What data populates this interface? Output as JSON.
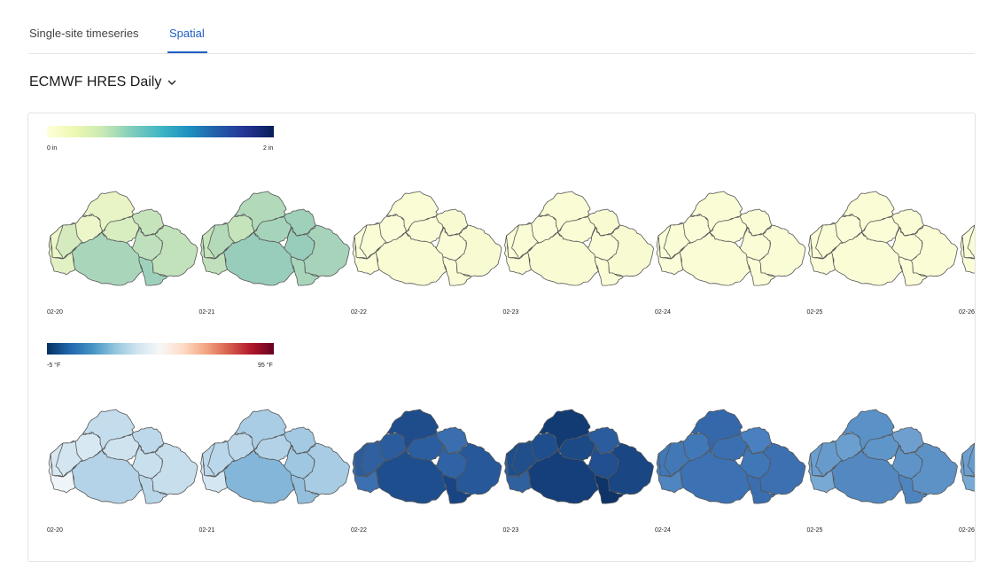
{
  "tabs": [
    {
      "label": "Single-site timeseries",
      "active": false
    },
    {
      "label": "Spatial",
      "active": true
    }
  ],
  "model_select": {
    "label": "ECMWF HRES Daily",
    "icon": "chevron-down-icon"
  },
  "precip": {
    "legend": {
      "min_label": "0 in",
      "max_label": "2 in",
      "colors": [
        "#ffffd9",
        "#edf8b1",
        "#c7e9b4",
        "#7fcdbb",
        "#41b6c4",
        "#1d91c0",
        "#225ea8",
        "#253494",
        "#081d58"
      ]
    },
    "dates": [
      "02-20",
      "02-21",
      "02-22",
      "02-23",
      "02-24",
      "02-25",
      "02-26"
    ],
    "panel_colors": [
      [
        "#edf6c9",
        "#e8f4c5",
        "#d8edc0",
        "#c6e4bc",
        "#bfe0bc",
        "#a9d6ba",
        "#e2f1c3",
        "#d5ebbf",
        "#c2e2bb",
        "#9ed1bb"
      ],
      [
        "#c5e4bb",
        "#b1d9ba",
        "#a6d4ba",
        "#9fd0ba",
        "#99cdbb",
        "#98ccbb",
        "#bfe0bb",
        "#b4dab9",
        "#a7d3ba",
        "#a9d5bb"
      ],
      [
        "#fbfdd8",
        "#f9fcd4",
        "#fafcd5",
        "#f8fbd2",
        "#fafcd6",
        "#f9fbd3",
        "#fbfdd7",
        "#f9fcd4",
        "#f8fbd2",
        "#fafcd5"
      ],
      [
        "#fbfdd8",
        "#f9fcd4",
        "#fafcd5",
        "#f8fbd2",
        "#fafcd6",
        "#f9fbd3",
        "#fbfdd7",
        "#f9fcd4",
        "#f8fbd2",
        "#fafcd5"
      ],
      [
        "#fbfdd8",
        "#fafcd5",
        "#fbfdd7",
        "#f9fcd4",
        "#fafcd6",
        "#fafcd5",
        "#fbfdd8",
        "#f9fcd4",
        "#fafcd5",
        "#fbfdd6"
      ],
      [
        "#fbfdd8",
        "#fafcd5",
        "#fbfdd7",
        "#f9fcd4",
        "#fafcd6",
        "#fafcd5",
        "#fbfdd8",
        "#f9fcd4",
        "#fafcd5",
        "#fbfdd6"
      ],
      [
        "#fbfdd8",
        "#fafcd5",
        "#fbfdd7",
        "#f9fcd4",
        "#fafcd6",
        "#fafcd5",
        "#fbfdd8",
        "#f9fcd4",
        "#fafcd5",
        "#fbfdd6"
      ]
    ]
  },
  "temp": {
    "legend": {
      "min_label": "-5 °F",
      "max_label": "95 °F",
      "colors": [
        "#053061",
        "#2166ac",
        "#4393c3",
        "#92c5de",
        "#d1e5f0",
        "#f7f7f7",
        "#fddbc7",
        "#f4a582",
        "#d6604d",
        "#b2182b",
        "#67001f"
      ]
    },
    "dates": [
      "02-20",
      "02-21",
      "02-22",
      "02-23",
      "02-24",
      "02-25",
      "02-26"
    ],
    "panel_colors": [
      [
        "#d8e8f2",
        "#c4ddec",
        "#cfe3ef",
        "#bdd8ea",
        "#c8dfed",
        "#b5d3e8",
        "#eef4f8",
        "#d2e5f0",
        "#c7deed",
        "#b9d6e9"
      ],
      [
        "#bcd7ea",
        "#a9cde4",
        "#b3d2e7",
        "#a4cae3",
        "#9ec7e2",
        "#84b6d9",
        "#d4e6f1",
        "#bad6ea",
        "#a7cce4",
        "#93bfdd"
      ],
      [
        "#2b5d9e",
        "#1f4d8c",
        "#2a5ea0",
        "#3a6eae",
        "#2f63a5",
        "#1e4e8d",
        "#3c70b0",
        "#30609f",
        "#26589a",
        "#1a4585"
      ],
      [
        "#1e4e8d",
        "#123b74",
        "#1c4a87",
        "#2b5d9e",
        "#214f8f",
        "#153f7a",
        "#30619f",
        "#214f8c",
        "#1a4684",
        "#0f3468"
      ],
      [
        "#4178b8",
        "#3568ab",
        "#3a70b2",
        "#4a80bf",
        "#3f77b7",
        "#3c72b3",
        "#4f85c1",
        "#4378b6",
        "#3c70b1",
        "#3a6eae"
      ],
      [
        "#6b9fcf",
        "#5a91c6",
        "#5f96c9",
        "#6e9fcf",
        "#5f94c8",
        "#5388c1",
        "#78a9d4",
        "#679bcc",
        "#5d92c7",
        "#4f85be"
      ],
      [
        "#6b9fcf",
        "#5a91c6",
        "#5f96c9",
        "#6e9fcf",
        "#5f94c8",
        "#5388c1",
        "#78a9d4",
        "#679bcc",
        "#5d92c7",
        "#4f85be"
      ]
    ]
  }
}
